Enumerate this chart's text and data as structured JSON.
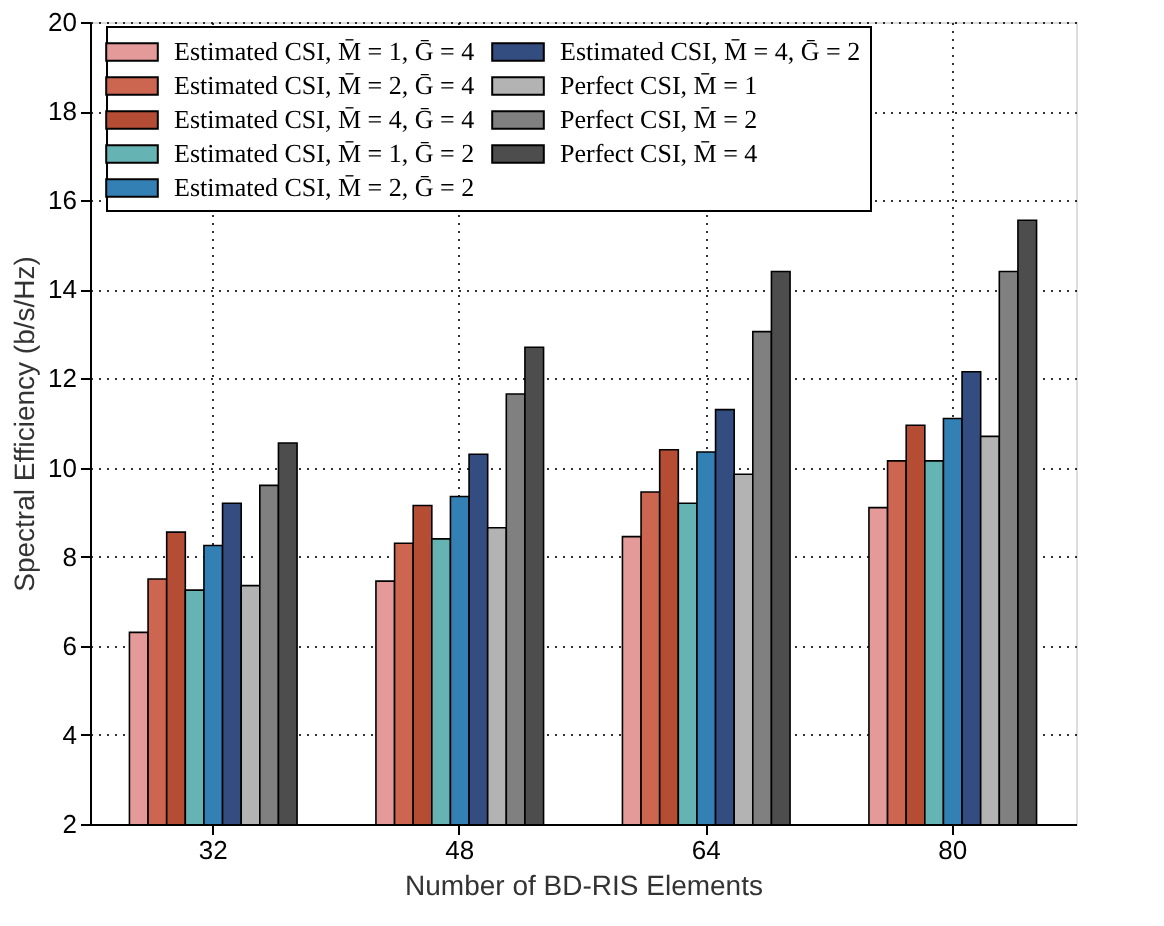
{
  "chart_data": {
    "type": "bar",
    "xlabel": "Number of BD-RIS Elements",
    "ylabel": "Spectral Efficiency (b/s/Hz)",
    "categories": [
      "32",
      "48",
      "64",
      "80"
    ],
    "series": [
      {
        "name": "Estimated CSI, M̄ = 1, Ḡ = 4",
        "color": "#e59a9a",
        "values": [
          6.3,
          7.45,
          8.45,
          9.1
        ]
      },
      {
        "name": "Estimated CSI, M̄ = 2, Ḡ = 4",
        "color": "#cc6650",
        "values": [
          7.5,
          8.3,
          9.45,
          10.15
        ]
      },
      {
        "name": "Estimated CSI, M̄ = 4, Ḡ = 4",
        "color": "#b54d35",
        "values": [
          8.55,
          9.15,
          10.4,
          10.95
        ]
      },
      {
        "name": "Estimated CSI, M̄ = 1, Ḡ = 2",
        "color": "#66b3b3",
        "values": [
          7.25,
          8.4,
          9.2,
          10.15
        ]
      },
      {
        "name": "Estimated CSI, M̄ = 2, Ḡ = 2",
        "color": "#3380b5",
        "values": [
          8.25,
          9.35,
          10.35,
          11.1
        ]
      },
      {
        "name": "Estimated CSI, M̄ = 4, Ḡ = 2",
        "color": "#334d80",
        "values": [
          9.2,
          10.3,
          11.3,
          12.15
        ]
      },
      {
        "name": "Perfect CSI, M̄ = 1",
        "color": "#b3b3b3",
        "values": [
          7.35,
          8.65,
          9.85,
          10.7
        ]
      },
      {
        "name": "Perfect CSI, M̄ = 2",
        "color": "#808080",
        "values": [
          9.6,
          11.65,
          13.05,
          14.4
        ]
      },
      {
        "name": "Perfect CSI, M̄ = 4",
        "color": "#4d4d4d",
        "values": [
          10.55,
          12.7,
          14.4,
          15.55
        ]
      }
    ],
    "ylim": [
      2,
      20
    ],
    "yticks": [
      2,
      4,
      6,
      8,
      10,
      12,
      14,
      16,
      18,
      20
    ],
    "grid": true,
    "legend": "top"
  }
}
